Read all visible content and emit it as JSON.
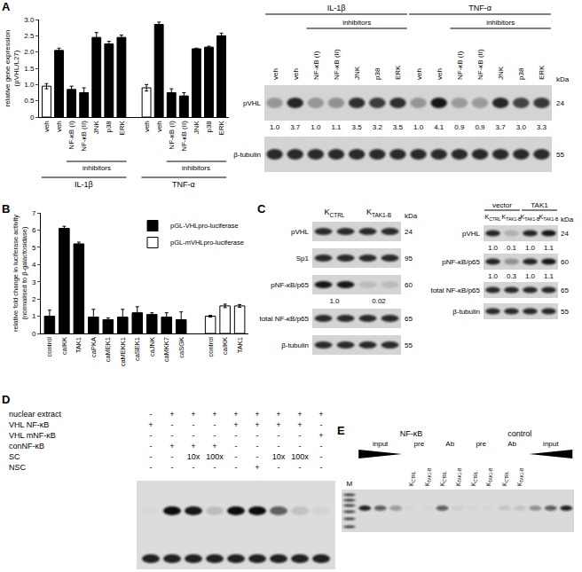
{
  "chart_data": [
    {
      "panel": "A",
      "type": "bar",
      "ylabel": [
        "relative gene expression",
        "(pVHL/L27)"
      ],
      "ylim": [
        0,
        3
      ],
      "yticks": [
        0,
        0.5,
        {
          "value": 1,
          "label": "1.0"
        },
        1.5,
        {
          "value": 2,
          "label": "2.0"
        },
        2.5,
        {
          "value": 3,
          "label": "3.0"
        }
      ],
      "groups": [
        {
          "name": "IL-1β",
          "bracket": {
            "text": "inhibitors",
            "from": 2,
            "to": 6
          },
          "categories": [
            "veh",
            "veh",
            "NF-κB (I)",
            "NF-κB (II)",
            "JNK",
            "p38",
            "ERK"
          ],
          "values": [
            0.95,
            2.05,
            0.85,
            0.75,
            2.45,
            2.25,
            2.45
          ],
          "errors": [
            0.08,
            0.07,
            0.1,
            0.15,
            0.15,
            0.08,
            0.07
          ],
          "colors": [
            "#ffffff",
            "#000000",
            "#000000",
            "#000000",
            "#000000",
            "#000000",
            "#000000"
          ]
        },
        {
          "name": "TNF-α",
          "bracket": {
            "text": "inhibitors",
            "from": 2,
            "to": 6
          },
          "categories": [
            "veh",
            "veh",
            "NF-κB (I)",
            "NF-κB (II)",
            "JNK",
            "p38",
            "ERK"
          ],
          "values": [
            0.9,
            2.85,
            0.75,
            0.65,
            2.1,
            2.15,
            2.5
          ],
          "errors": [
            0.1,
            0.07,
            0.12,
            0.1,
            0.02,
            0.03,
            0.08
          ],
          "colors": [
            "#ffffff",
            "#000000",
            "#000000",
            "#000000",
            "#000000",
            "#000000",
            "#000000"
          ]
        }
      ]
    },
    {
      "panel": "B",
      "type": "bar",
      "ylabel": [
        "relative fold change in luciferase activity",
        "(normalised to β-galactosidase)"
      ],
      "ylim": [
        0,
        7
      ],
      "yticks": [
        0,
        1,
        2,
        3,
        4,
        5,
        6,
        7
      ],
      "legend": "upper right",
      "series": [
        {
          "name": "pGL-VHLpro-luciferase",
          "color": "#000000",
          "categories": [
            "control",
            "caIKK",
            "TAK1",
            "caPKA",
            "caMEK1",
            "caMEKK1",
            "caSEK1",
            "caJNK",
            "caMKK7",
            "caSGK"
          ],
          "values": [
            1.0,
            6.1,
            5.2,
            0.95,
            0.8,
            0.95,
            1.2,
            1.1,
            0.95,
            0.8
          ],
          "errors": [
            0.35,
            0.12,
            0.1,
            0.45,
            0.1,
            0.45,
            0.35,
            0.1,
            0.25,
            0.45
          ]
        },
        {
          "name": "pGL-mVHLpro-luciferase",
          "color": "#ffffff",
          "categories": [
            "control",
            "caIKK",
            "TAK1"
          ],
          "values": [
            1.0,
            1.6,
            1.6
          ],
          "errors": [
            0.05,
            0.1,
            0.08
          ]
        }
      ]
    }
  ],
  "blot_A": {
    "headers": [
      {
        "text": "IL-1β",
        "from": 0,
        "to": 6
      },
      {
        "text": "TNF-α",
        "from": 7,
        "to": 13
      }
    ],
    "brackets": [
      {
        "text": "inhibitors",
        "from": 2,
        "to": 6
      },
      {
        "text": "inhibitors",
        "from": 9,
        "to": 13
      }
    ],
    "lanes": [
      "veh",
      "veh",
      "NF-κB (I)",
      "NF-κB (II)",
      "JNK",
      "p38",
      "ERK",
      "veh",
      "veh",
      "NF-κB (I)",
      "NF-κB (II)",
      "JNK",
      "p38",
      "ERK"
    ],
    "kda_label": "kDa",
    "rows": [
      {
        "label": "pVHL",
        "kda": 24,
        "quant": [
          1,
          3.7,
          1,
          1.1,
          3.5,
          3.2,
          3.5,
          1,
          4.1,
          0.9,
          0.9,
          3.7,
          3,
          3.3
        ],
        "quant_labels": [
          "1.0",
          "3.7",
          "1.0",
          "1.1",
          "3.5",
          "3.2",
          "3.5",
          "1.0",
          "4.1",
          "0.9",
          "0.9",
          "3.7",
          "3.0",
          "3.3"
        ]
      },
      {
        "label": "β-tubulin",
        "kda": 55
      }
    ]
  },
  "panel_C": {
    "panel": "C",
    "left": {
      "headers": [
        {
          "text": {
            "main": "K",
            "sub": "CTRL"
          },
          "from": 0,
          "to": 1
        },
        {
          "text": {
            "main": "K",
            "sub": "TAK1-B"
          },
          "from": 2,
          "to": 3
        }
      ],
      "lane_count": 4,
      "kda_label": "kDa",
      "rows": [
        {
          "label": "pVHL",
          "kda": 24
        },
        {
          "label": "Sp1",
          "kda": 95
        },
        {
          "label": "pNF-κB/p65",
          "kda": 60,
          "quant": [
            1,
            0.02
          ],
          "quant_labels": [
            "1.0",
            "0.02"
          ]
        },
        {
          "label": "total NF-κB/p65",
          "kda": 65
        },
        {
          "label": "β-tubulin",
          "kda": 55
        }
      ]
    },
    "right": {
      "headers": [
        {
          "text": "vector",
          "from": 0,
          "to": 1
        },
        {
          "text": "TAK1",
          "from": 2,
          "to": 3
        }
      ],
      "lanes": [
        {
          "main": "K",
          "sub": "CTRL"
        },
        {
          "main": "K",
          "sub": "TAK1-B"
        },
        {
          "main": "K",
          "sub": "TAK1-B"
        },
        {
          "main": "K",
          "sub": "TAK1-B"
        }
      ],
      "kda_label": "kDa",
      "rows": [
        {
          "label": "pVHL",
          "kda": 24,
          "quant": [
            1,
            0.1,
            1,
            1.1
          ],
          "quant_labels": [
            "1.0",
            "0.1",
            "1.0",
            "1.1"
          ]
        },
        {
          "label": "pNF-κB/p65",
          "kda": 60,
          "quant": [
            1,
            0.3,
            1,
            1.1
          ],
          "quant_labels": [
            "1.0",
            "0.3",
            "1.0",
            "1.1"
          ]
        },
        {
          "label": "total NF-κB/p65",
          "kda": 65
        },
        {
          "label": "β-tubulin",
          "kda": 55
        }
      ]
    }
  },
  "panel_D": {
    "panel": "D",
    "rows": [
      {
        "label": "nuclear extract",
        "cells": [
          "-",
          "+",
          "+",
          "+",
          "+",
          "+",
          "+",
          "+",
          "+"
        ]
      },
      {
        "label": "VHL NF-κB",
        "cells": [
          "+",
          "-",
          "-",
          "-",
          "+",
          "+",
          "+",
          "+",
          "-"
        ]
      },
      {
        "label": "VHL mNF-κB",
        "cells": [
          "-",
          "-",
          "-",
          "-",
          "-",
          "-",
          "-",
          "-",
          "+"
        ]
      },
      {
        "label": "conNF-κB",
        "cells": [
          "-",
          "+",
          "+",
          "+",
          "-",
          "-",
          "-",
          "-",
          "-"
        ]
      },
      {
        "label": "SC",
        "cells": [
          "-",
          "-",
          "10x",
          "100x",
          "-",
          "-",
          "10x",
          "100x",
          "-"
        ]
      },
      {
        "label": "NSC",
        "cells": [
          "-",
          "-",
          "-",
          "-",
          "-",
          "+",
          "-",
          "-",
          "-"
        ]
      }
    ]
  },
  "panel_E": {
    "panel": "E",
    "headers": [
      {
        "text": "NF-κB",
        "from": 1,
        "to": 7
      },
      {
        "text": "control",
        "from": 8,
        "to": 14
      }
    ],
    "marker": "M",
    "groups": [
      {
        "text": "input",
        "from": 1,
        "to": 3
      },
      {
        "text": "pre",
        "from": 4,
        "to": 5
      },
      {
        "text": "Ab",
        "from": 6,
        "to": 7
      },
      {
        "text": "pre",
        "from": 8,
        "to": 9
      },
      {
        "text": "Ab",
        "from": 10,
        "to": 11
      },
      {
        "text": "input",
        "from": 12,
        "to": 14
      }
    ],
    "lanes": [
      null,
      null,
      null,
      null,
      {
        "main": "K",
        "sub": "CTRL"
      },
      {
        "main": "K",
        "sub": "TAK1-B"
      },
      {
        "main": "K",
        "sub": "CTRL"
      },
      {
        "main": "K",
        "sub": "TAK1-B"
      },
      {
        "main": "K",
        "sub": "CTRL"
      },
      {
        "main": "K",
        "sub": "TAK1-B"
      },
      {
        "main": "K",
        "sub": "CTRL"
      },
      {
        "main": "K",
        "sub": "TAK1-B"
      },
      null,
      null,
      null
    ]
  }
}
